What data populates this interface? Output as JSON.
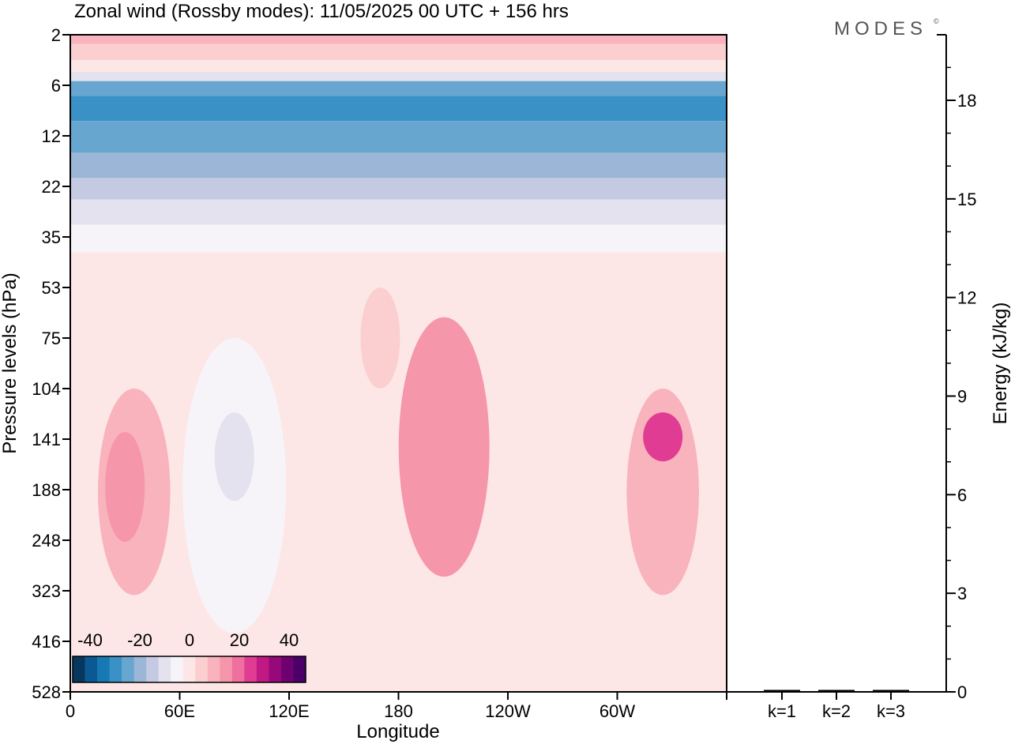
{
  "header": {
    "title": "Zonal wind (Rossby modes):  11/05/2025  00 UTC  + 156 hrs",
    "logo": "MODES",
    "logo_mark": "©"
  },
  "colorbar": {
    "tick_labels": [
      "-40",
      "-20",
      "0",
      "20",
      "40"
    ],
    "colors": [
      "#08375e",
      "#0b5994",
      "#1679b4",
      "#3a91c6",
      "#67a6cf",
      "#9bb6d6",
      "#c4cae2",
      "#e3e2ee",
      "#f7f4f9",
      "#fde6e6",
      "#fbcfd0",
      "#f8b3bd",
      "#f596ab",
      "#ef6f9f",
      "#e03c93",
      "#c11984",
      "#97097a",
      "#6f0070",
      "#4a0068"
    ]
  },
  "chart_data": [
    {
      "type": "heatmap",
      "title": "Zonal wind (Rossby modes):  11/05/2025  00 UTC  + 156 hrs",
      "xlabel": "Longitude",
      "ylabel": "Pressure levels (hPa)",
      "x_ticks": [
        "0",
        "60E",
        "120E",
        "180",
        "120W",
        "60W"
      ],
      "y_ticks": [
        "2",
        "6",
        "12",
        "22",
        "35",
        "53",
        "75",
        "104",
        "141",
        "188",
        "248",
        "323",
        "416",
        "528"
      ],
      "y_scale": "log",
      "x_range": [
        0,
        360
      ],
      "legend": "colorbar bottom-left",
      "colorbar_range": [
        -40,
        40
      ],
      "bands": [
        {
          "pressure": 2,
          "wind": 8
        },
        {
          "pressure": 3,
          "wind": 3
        },
        {
          "pressure": 4,
          "wind": -2
        },
        {
          "pressure": 5,
          "wind": -10
        },
        {
          "pressure": 6,
          "wind": -20
        },
        {
          "pressure": 8,
          "wind": -27
        },
        {
          "pressure": 12,
          "wind": -22
        },
        {
          "pressure": 18,
          "wind": -17
        },
        {
          "pressure": 22,
          "wind": -12
        },
        {
          "pressure": 28,
          "wind": -8
        },
        {
          "pressure": 35,
          "wind": -4
        },
        {
          "pressure": 45,
          "wind": 0
        },
        {
          "pressure": 53,
          "wind": 2
        },
        {
          "pressure": 104,
          "wind": 2
        },
        {
          "pressure": 528,
          "wind": 0
        }
      ],
      "features": [
        {
          "lon": 35,
          "p_top": 104,
          "p_bottom": 330,
          "wind": 8
        },
        {
          "lon": 30,
          "p_top": 135,
          "p_bottom": 250,
          "wind": 14
        },
        {
          "lon": 90,
          "p_top": 75,
          "p_bottom": 400,
          "wind": -3
        },
        {
          "lon": 90,
          "p_top": 120,
          "p_bottom": 200,
          "wind": -8
        },
        {
          "lon": 170,
          "p_top": 53,
          "p_bottom": 104,
          "wind": 5
        },
        {
          "lon": 205,
          "p_top": 65,
          "p_bottom": 300,
          "wind": 12
        },
        {
          "lon": 325,
          "p_top": 104,
          "p_bottom": 330,
          "wind": 10
        },
        {
          "lon": 325,
          "p_top": 120,
          "p_bottom": 160,
          "wind": 20
        }
      ]
    },
    {
      "type": "bar",
      "ylabel": "Energy (kJ/kg)",
      "categories": [
        "k=1",
        "k=2",
        "k=3"
      ],
      "values": [
        0.02,
        0.02,
        0.01
      ],
      "y_ticks": [
        "0",
        "3",
        "6",
        "9",
        "12",
        "15",
        "18"
      ],
      "ylim": [
        0,
        20
      ]
    }
  ]
}
